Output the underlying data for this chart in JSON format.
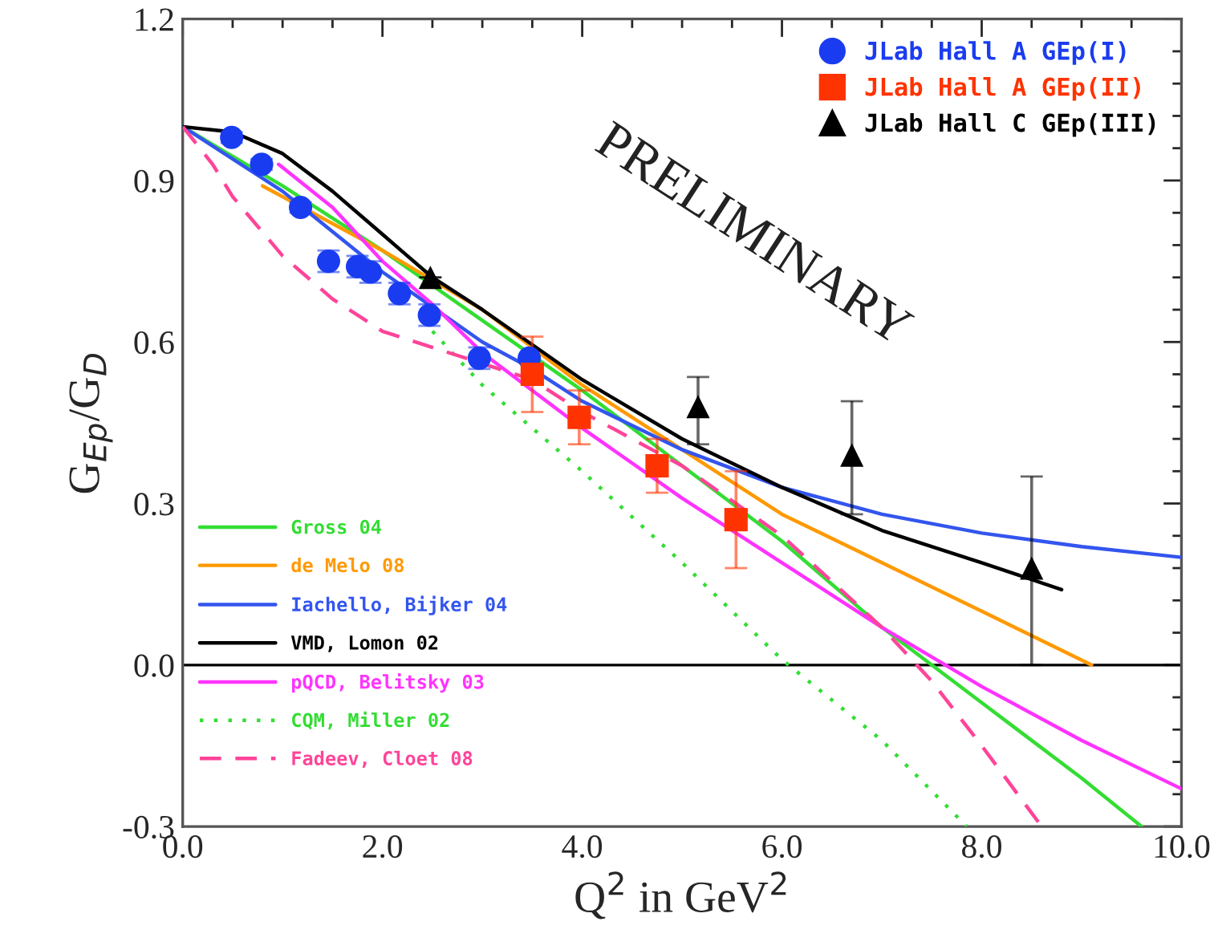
{
  "chart_data": {
    "type": "scatter",
    "xlabel": "Q$^{2}$ in GeV$^{2}$",
    "ylabel": "G$_{Ep}$/G$_{D}$",
    "xlim": [
      0,
      10
    ],
    "ylim": [
      -0.3,
      1.2
    ],
    "xticks": [
      {
        "value": 0,
        "label": "0.0"
      },
      {
        "value": 2,
        "label": "2.0"
      },
      {
        "value": 4,
        "label": "4.0"
      },
      {
        "value": 6,
        "label": "6.0"
      },
      {
        "value": 8,
        "label": "8.0"
      },
      {
        "value": 10,
        "label": "10.0"
      }
    ],
    "yticks": [
      {
        "value": -0.3,
        "label": "-0.3"
      },
      {
        "value": 0,
        "label": "0.0"
      },
      {
        "value": 0.3,
        "label": "0.3"
      },
      {
        "value": 0.6,
        "label": "0.6"
      },
      {
        "value": 0.9,
        "label": "0.9"
      },
      {
        "value": 1.2,
        "label": "1.2"
      }
    ],
    "grid": false,
    "legend": "top right",
    "ref_lines": [
      {
        "axis": "y",
        "value": 0,
        "color": "#000000"
      }
    ],
    "annotations": [
      "PRELIMINARY"
    ],
    "series": [
      {
        "name": "JLab Hall A GEp(I)",
        "marker": "circle",
        "color": "#1a3cf0",
        "x": [
          0.49,
          0.79,
          1.18,
          1.46,
          1.75,
          1.88,
          2.17,
          2.47,
          2.97,
          3.47
        ],
        "values": [
          0.98,
          0.93,
          0.85,
          0.75,
          0.74,
          0.73,
          0.69,
          0.65,
          0.57,
          0.57
        ],
        "errors": [
          0.01,
          0.01,
          0.01,
          0.02,
          0.02,
          0.02,
          0.02,
          0.02,
          0.02,
          null
        ]
      },
      {
        "name": "JLab Hall A GEp(II)",
        "marker": "square",
        "color": "#ff3300",
        "x": [
          3.5,
          3.97,
          4.75,
          5.54
        ],
        "values": [
          0.54,
          0.46,
          0.37,
          0.27
        ],
        "errors": [
          0.07,
          0.05,
          0.05,
          0.09
        ]
      },
      {
        "name": "JLab Hall C GEp(III)",
        "marker": "triangle",
        "color": "#000000",
        "x": [
          2.48,
          5.16,
          6.7,
          8.5
        ],
        "values": [
          0.72,
          0.48,
          0.39,
          0.18
        ],
        "errors": [
          null,
          [
            0.41,
            0.535
          ],
          [
            0.28,
            0.49
          ],
          [
            0.0,
            0.35
          ]
        ]
      },
      {
        "name": "Gross 04",
        "type": "line",
        "line_style": "solid",
        "color": "#33dd33",
        "x": [
          0,
          1,
          2,
          3,
          4,
          5,
          6,
          7,
          7.5,
          8,
          9,
          9.6
        ],
        "values": [
          1.0,
          0.89,
          0.77,
          0.64,
          0.51,
          0.37,
          0.23,
          0.07,
          0.0,
          -0.07,
          -0.21,
          -0.3
        ]
      },
      {
        "name": "de Melo 08",
        "type": "line",
        "line_style": "solid",
        "color": "#ff9900",
        "x": [
          0.8,
          2,
          3,
          4,
          5,
          6,
          7,
          8,
          9.1
        ],
        "values": [
          0.89,
          0.77,
          0.66,
          0.52,
          0.4,
          0.28,
          0.19,
          0.1,
          0.0
        ]
      },
      {
        "name": "Iachello, Bijker 04",
        "type": "line",
        "line_style": "solid",
        "color": "#3355ee",
        "x": [
          0,
          1,
          2,
          3,
          3.5,
          4,
          5,
          6,
          7,
          8,
          9,
          10
        ],
        "values": [
          1.0,
          0.88,
          0.73,
          0.6,
          0.55,
          0.49,
          0.4,
          0.33,
          0.28,
          0.245,
          0.22,
          0.2
        ]
      },
      {
        "name": "VMD, Lomon 02",
        "type": "line",
        "line_style": "solid",
        "color": "#000000",
        "x": [
          0,
          0.5,
          1,
          1.5,
          2,
          2.5,
          3,
          4,
          5,
          6,
          7,
          8,
          8.8
        ],
        "values": [
          1.0,
          0.99,
          0.95,
          0.88,
          0.8,
          0.72,
          0.66,
          0.53,
          0.42,
          0.33,
          0.25,
          0.19,
          0.14
        ]
      },
      {
        "name": "pQCD, Belitsky 03",
        "type": "line",
        "line_style": "solid",
        "color": "#ff33ff",
        "x": [
          0.96,
          1.5,
          2,
          2.5,
          3,
          4,
          5,
          6,
          7,
          8,
          9,
          10
        ],
        "values": [
          0.93,
          0.85,
          0.75,
          0.67,
          0.58,
          0.44,
          0.31,
          0.19,
          0.07,
          -0.04,
          -0.14,
          -0.23
        ]
      },
      {
        "name": "CQM, Miller 02",
        "type": "line",
        "line_style": "dotted",
        "color": "#33dd33",
        "x": [
          2.5,
          3,
          4,
          5,
          6,
          7,
          7.85
        ],
        "values": [
          0.62,
          0.52,
          0.36,
          0.19,
          0.01,
          -0.14,
          -0.3
        ]
      },
      {
        "name": "Fadeev, Cloet 08",
        "type": "line",
        "line_style": "dashed",
        "color": "#ff4499",
        "x": [
          0,
          0.3,
          0.5,
          1,
          1.5,
          2,
          3,
          3.5,
          4,
          5,
          6,
          7,
          7.5,
          8,
          8.6
        ],
        "values": [
          1.0,
          0.93,
          0.87,
          0.76,
          0.68,
          0.62,
          0.56,
          0.53,
          0.47,
          0.37,
          0.24,
          0.07,
          -0.03,
          -0.15,
          -0.3
        ]
      }
    ]
  }
}
